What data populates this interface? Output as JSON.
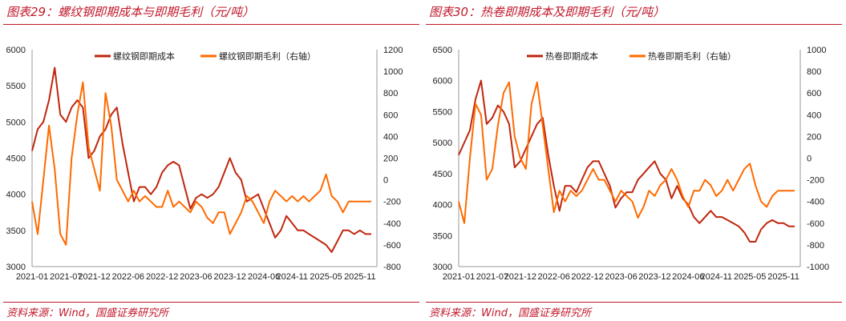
{
  "charts": [
    {
      "title": "图表29：螺纹钢即期成本与即期毛利（元/吨）",
      "source": "资料来源：Wind，国盛证券研究所"
    },
    {
      "title": "图表30：热卷即期成本及即期毛利（元/吨）",
      "source": "资料来源：Wind，国盛证券研究所"
    }
  ],
  "chart_data": [
    {
      "type": "line",
      "x_ticks": [
        "2021-01",
        "2021-07",
        "2021-12",
        "2022-06",
        "2022-12",
        "2023-06",
        "2023-12",
        "2024-06",
        "2024-11",
        "2025-05",
        "2025-11"
      ],
      "x_start": "2021-01",
      "x_end": "2026-02",
      "legend": "top",
      "y_left": {
        "range": [
          3000,
          6000
        ],
        "ticks": [
          3000,
          3500,
          4000,
          4500,
          5000,
          5500,
          6000
        ]
      },
      "y_right": {
        "range": [
          -800,
          1200
        ],
        "ticks": [
          -800,
          -600,
          -400,
          -200,
          0,
          200,
          400,
          600,
          800,
          1000,
          1200
        ]
      },
      "x": [
        "2021-01",
        "2021-02",
        "2021-03",
        "2021-04",
        "2021-05",
        "2021-06",
        "2021-07",
        "2021-08",
        "2021-09",
        "2021-10",
        "2021-11",
        "2021-12",
        "2022-01",
        "2022-02",
        "2022-03",
        "2022-04",
        "2022-05",
        "2022-06",
        "2022-07",
        "2022-08",
        "2022-09",
        "2022-10",
        "2022-11",
        "2022-12",
        "2023-01",
        "2023-02",
        "2023-03",
        "2023-04",
        "2023-05",
        "2023-06",
        "2023-07",
        "2023-08",
        "2023-09",
        "2023-10",
        "2023-11",
        "2023-12",
        "2024-01",
        "2024-02",
        "2024-03",
        "2024-04",
        "2024-05",
        "2024-06",
        "2024-07",
        "2024-08",
        "2024-09",
        "2024-10",
        "2024-11",
        "2024-12",
        "2025-01",
        "2025-02",
        "2025-03",
        "2025-04",
        "2025-05",
        "2025-06",
        "2025-07",
        "2025-08",
        "2025-09",
        "2025-10",
        "2025-11",
        "2025-12",
        "2026-01"
      ],
      "series": [
        {
          "name": "螺纹钢即期成本",
          "axis": "left",
          "color": "#C0260E",
          "values": [
            4600,
            4900,
            5000,
            5300,
            5750,
            5100,
            5000,
            5200,
            5300,
            5200,
            4500,
            4600,
            4800,
            4900,
            5100,
            5200,
            4700,
            4300,
            3900,
            4100,
            4100,
            4000,
            4100,
            4300,
            4400,
            4450,
            4400,
            4100,
            3800,
            3950,
            4000,
            3950,
            4000,
            4100,
            4300,
            4500,
            4300,
            4200,
            3900,
            3950,
            4000,
            3800,
            3600,
            3400,
            3500,
            3700,
            3600,
            3500,
            3500,
            3450,
            3400,
            3350,
            3300,
            3200,
            3350,
            3500,
            3500,
            3450,
            3500,
            3450,
            3450
          ]
        },
        {
          "name": "螺纹钢即期毛利（右轴）",
          "axis": "right",
          "color": "#FF6A00",
          "values": [
            -200,
            -500,
            0,
            500,
            100,
            -500,
            -600,
            200,
            600,
            900,
            300,
            100,
            -100,
            800,
            500,
            0,
            -100,
            -200,
            -100,
            -200,
            -150,
            -200,
            -250,
            -250,
            -100,
            -250,
            -200,
            -250,
            -300,
            -200,
            -250,
            -350,
            -400,
            -300,
            -300,
            -500,
            -400,
            -300,
            -150,
            -200,
            -300,
            -400,
            -200,
            -100,
            -150,
            -200,
            -150,
            -200,
            -150,
            -200,
            -150,
            -100,
            50,
            -150,
            -200,
            -300,
            -200,
            -200,
            -200,
            -200,
            -200
          ]
        }
      ]
    },
    {
      "type": "line",
      "x_ticks": [
        "2021-01",
        "2021-07",
        "2021-12",
        "2022-06",
        "2022-12",
        "2023-06",
        "2023-12",
        "2024-06",
        "2024-11",
        "2025-05",
        "2025-11"
      ],
      "x_start": "2021-01",
      "x_end": "2026-02",
      "legend": "top",
      "y_left": {
        "range": [
          3000,
          6500
        ],
        "ticks": [
          3000,
          3500,
          4000,
          4500,
          5000,
          5500,
          6000,
          6500
        ]
      },
      "y_right": {
        "range": [
          -1000,
          1000
        ],
        "ticks": [
          -1000,
          -800,
          -600,
          -400,
          -200,
          0,
          200,
          400,
          600,
          800,
          1000
        ]
      },
      "x": [
        "2021-01",
        "2021-02",
        "2021-03",
        "2021-04",
        "2021-05",
        "2021-06",
        "2021-07",
        "2021-08",
        "2021-09",
        "2021-10",
        "2021-11",
        "2021-12",
        "2022-01",
        "2022-02",
        "2022-03",
        "2022-04",
        "2022-05",
        "2022-06",
        "2022-07",
        "2022-08",
        "2022-09",
        "2022-10",
        "2022-11",
        "2022-12",
        "2023-01",
        "2023-02",
        "2023-03",
        "2023-04",
        "2023-05",
        "2023-06",
        "2023-07",
        "2023-08",
        "2023-09",
        "2023-10",
        "2023-11",
        "2023-12",
        "2024-01",
        "2024-02",
        "2024-03",
        "2024-04",
        "2024-05",
        "2024-06",
        "2024-07",
        "2024-08",
        "2024-09",
        "2024-10",
        "2024-11",
        "2024-12",
        "2025-01",
        "2025-02",
        "2025-03",
        "2025-04",
        "2025-05",
        "2025-06",
        "2025-07",
        "2025-08",
        "2025-09",
        "2025-10",
        "2025-11",
        "2025-12",
        "2026-01"
      ],
      "series": [
        {
          "name": "热卷即期成本",
          "axis": "left",
          "color": "#C0260E",
          "values": [
            4800,
            5000,
            5200,
            5700,
            6000,
            5300,
            5400,
            5600,
            5500,
            5300,
            4600,
            4700,
            4900,
            5100,
            5300,
            5400,
            4800,
            4300,
            3900,
            4300,
            4300,
            4200,
            4400,
            4600,
            4700,
            4700,
            4500,
            4300,
            3950,
            4100,
            4200,
            4200,
            4400,
            4500,
            4600,
            4700,
            4500,
            4400,
            4100,
            4300,
            4100,
            4000,
            3800,
            3700,
            3800,
            3900,
            3800,
            3800,
            3750,
            3700,
            3650,
            3550,
            3400,
            3400,
            3600,
            3700,
            3750,
            3700,
            3700,
            3650,
            3650
          ]
        },
        {
          "name": "热卷即期毛利（右轴）",
          "axis": "right",
          "color": "#FF6A00",
          "values": [
            -400,
            -600,
            0,
            500,
            400,
            -200,
            -100,
            300,
            600,
            700,
            200,
            0,
            -100,
            500,
            700,
            300,
            -100,
            -500,
            -300,
            -400,
            -300,
            -350,
            -300,
            -200,
            -100,
            -200,
            -200,
            -300,
            -400,
            -300,
            -350,
            -400,
            -550,
            -450,
            -300,
            -350,
            -250,
            -200,
            -100,
            -200,
            -350,
            -450,
            -300,
            -300,
            -200,
            -250,
            -350,
            -300,
            -200,
            -300,
            -200,
            -100,
            -50,
            -250,
            -400,
            -450,
            -350,
            -300,
            -300,
            -300,
            -300
          ]
        }
      ]
    }
  ]
}
